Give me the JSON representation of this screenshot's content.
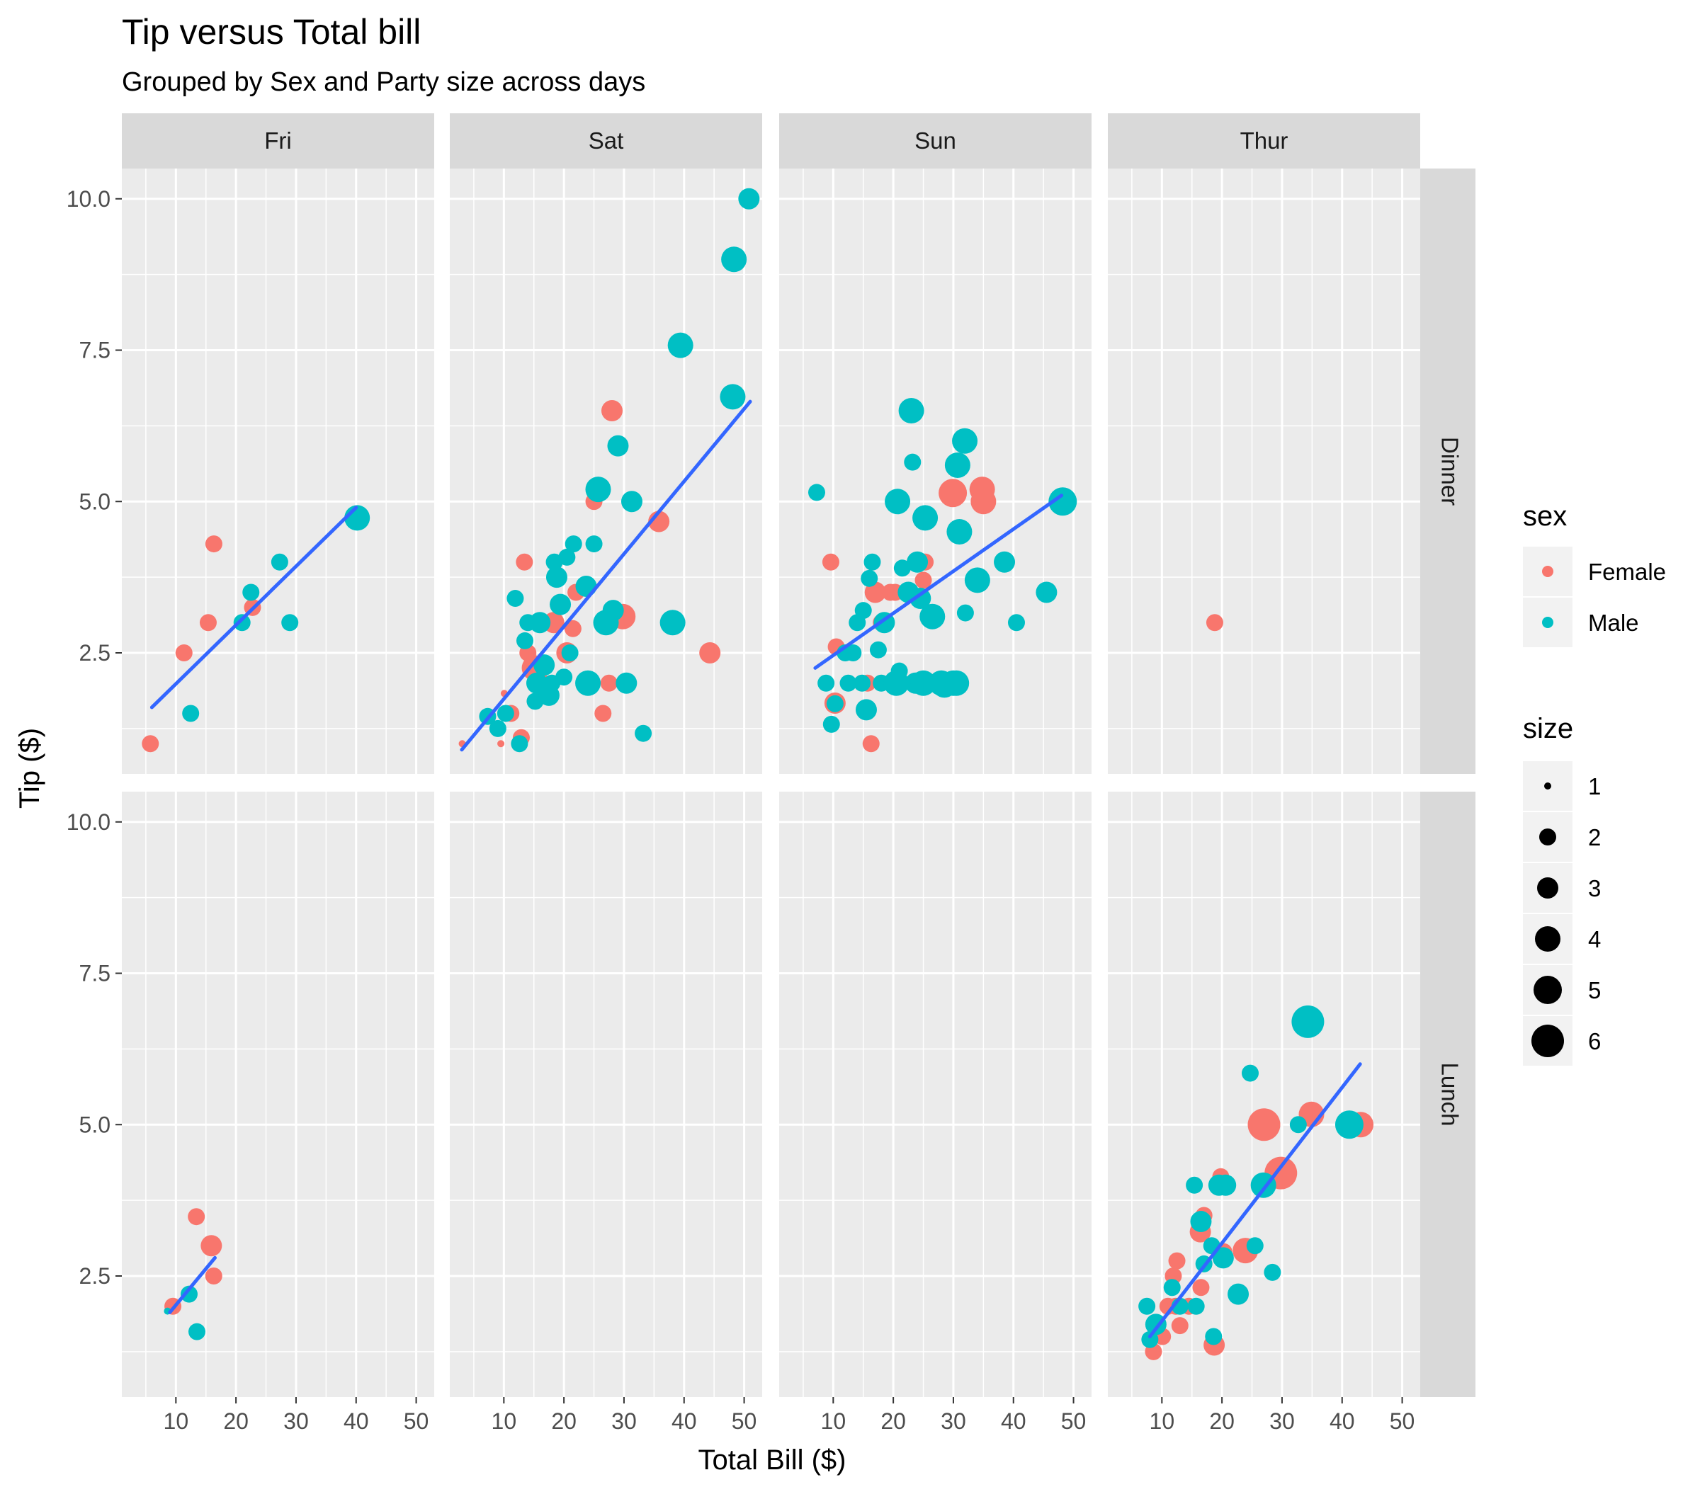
{
  "chart_data": {
    "type": "scatter",
    "title": "Tip versus Total bill",
    "subtitle": "Grouped by Sex and Party size across days",
    "xlabel": "Total Bill ($)",
    "ylabel": "Tip ($)",
    "xlim": [
      1,
      53
    ],
    "ylim": [
      0.5,
      10.5
    ],
    "x_ticks": [
      10,
      20,
      30,
      40,
      50
    ],
    "y_ticks": [
      2.5,
      5.0,
      7.5,
      10.0
    ],
    "y_tick_labels": [
      "2.5",
      "5.0",
      "7.5",
      "10.0"
    ],
    "columns": [
      "Fri",
      "Sat",
      "Sun",
      "Thur"
    ],
    "rows": [
      "Dinner",
      "Lunch"
    ],
    "grid": true,
    "colors": {
      "Female": "#F8766D",
      "Male": "#00BFC4",
      "trend": "#3366FF",
      "panel": "#EBEBEB",
      "strip": "#D9D9D9"
    },
    "legend": {
      "position": "right",
      "sex_title": "sex",
      "sex_entries": [
        "Female",
        "Male"
      ],
      "size_title": "size",
      "size_entries": [
        1,
        2,
        3,
        4,
        5,
        6
      ]
    },
    "panels": [
      {
        "day": "Fri",
        "time": "Dinner",
        "trend": [
          [
            6,
            1.6
          ],
          [
            40,
            4.9
          ]
        ],
        "points": [
          [
            5.75,
            1.0,
            "F",
            2
          ],
          [
            11.35,
            2.5,
            "F",
            2
          ],
          [
            15.38,
            3.0,
            "F",
            2
          ],
          [
            16.32,
            4.3,
            "F",
            2
          ],
          [
            22.75,
            3.25,
            "F",
            2
          ],
          [
            12.46,
            1.5,
            "M",
            2
          ],
          [
            21.01,
            3.0,
            "M",
            2
          ],
          [
            22.49,
            3.5,
            "M",
            2
          ],
          [
            27.28,
            4.0,
            "M",
            2
          ],
          [
            28.97,
            3.0,
            "M",
            2
          ],
          [
            40.17,
            4.73,
            "M",
            4
          ]
        ]
      },
      {
        "day": "Sat",
        "time": "Dinner",
        "trend": [
          [
            3,
            0.9
          ],
          [
            51,
            6.65
          ]
        ],
        "points": [
          [
            3.07,
            1.0,
            "F",
            1
          ],
          [
            9.5,
            1.0,
            "F",
            1
          ],
          [
            10.07,
            1.83,
            "F",
            1
          ],
          [
            11.17,
            1.5,
            "F",
            2
          ],
          [
            12.9,
            1.1,
            "F",
            2
          ],
          [
            13.42,
            4.0,
            "F",
            2
          ],
          [
            14.0,
            2.5,
            "F",
            2
          ],
          [
            15.1,
            2.25,
            "F",
            4
          ],
          [
            16.5,
            2.0,
            "F",
            2
          ],
          [
            17.7,
            3.0,
            "F",
            2
          ],
          [
            18.3,
            3.0,
            "F",
            3
          ],
          [
            20.5,
            2.5,
            "F",
            3
          ],
          [
            21.5,
            2.9,
            "F",
            2
          ],
          [
            22.0,
            3.5,
            "F",
            2
          ],
          [
            25.0,
            5.0,
            "F",
            2
          ],
          [
            26.5,
            1.5,
            "F",
            2
          ],
          [
            27.5,
            2.0,
            "F",
            2
          ],
          [
            28.0,
            6.5,
            "F",
            3
          ],
          [
            29.8,
            3.1,
            "F",
            4
          ],
          [
            35.8,
            4.67,
            "F",
            3
          ],
          [
            44.3,
            2.5,
            "F",
            3
          ],
          [
            7.3,
            1.45,
            "M",
            2
          ],
          [
            9.0,
            1.25,
            "M",
            2
          ],
          [
            10.3,
            1.5,
            "M",
            2
          ],
          [
            11.9,
            3.4,
            "M",
            2
          ],
          [
            12.6,
            1.0,
            "M",
            2
          ],
          [
            13.5,
            2.7,
            "M",
            2
          ],
          [
            14.0,
            3.0,
            "M",
            2
          ],
          [
            15.2,
            1.7,
            "M",
            2
          ],
          [
            15.5,
            2.0,
            "M",
            3
          ],
          [
            16.0,
            3.0,
            "M",
            3
          ],
          [
            16.7,
            2.3,
            "M",
            3
          ],
          [
            17.5,
            1.8,
            "M",
            3
          ],
          [
            18.0,
            2.0,
            "M",
            2
          ],
          [
            18.4,
            4.0,
            "M",
            2
          ],
          [
            18.8,
            3.75,
            "M",
            3
          ],
          [
            19.4,
            3.3,
            "M",
            3
          ],
          [
            20.0,
            2.1,
            "M",
            2
          ],
          [
            20.5,
            4.08,
            "M",
            2
          ],
          [
            21.0,
            2.5,
            "M",
            2
          ],
          [
            21.6,
            4.3,
            "M",
            2
          ],
          [
            23.7,
            3.6,
            "M",
            3
          ],
          [
            24.0,
            2.0,
            "M",
            4
          ],
          [
            25.0,
            4.3,
            "M",
            2
          ],
          [
            25.7,
            5.2,
            "M",
            4
          ],
          [
            27.0,
            3.0,
            "M",
            4
          ],
          [
            28.2,
            3.2,
            "M",
            3
          ],
          [
            29.0,
            5.92,
            "M",
            3
          ],
          [
            30.4,
            2.0,
            "M",
            3
          ],
          [
            31.3,
            5.0,
            "M",
            3
          ],
          [
            33.2,
            1.17,
            "M",
            2
          ],
          [
            38.1,
            3.0,
            "M",
            4
          ],
          [
            39.4,
            7.58,
            "M",
            4
          ],
          [
            48.1,
            6.73,
            "M",
            4
          ],
          [
            48.3,
            9.0,
            "M",
            4
          ],
          [
            50.8,
            10.0,
            "M",
            3
          ]
        ]
      },
      {
        "day": "Sun",
        "time": "Dinner",
        "trend": [
          [
            7,
            2.25
          ],
          [
            48,
            5.1
          ]
        ],
        "points": [
          [
            9.6,
            4.0,
            "F",
            2
          ],
          [
            10.3,
            1.67,
            "F",
            3
          ],
          [
            10.5,
            2.6,
            "F",
            2
          ],
          [
            15.7,
            2.0,
            "F",
            2
          ],
          [
            16.3,
            1.0,
            "F",
            2
          ],
          [
            17.0,
            3.5,
            "F",
            3
          ],
          [
            18.0,
            3.0,
            "F",
            2
          ],
          [
            19.5,
            3.5,
            "F",
            2
          ],
          [
            20.3,
            3.5,
            "F",
            2
          ],
          [
            25.0,
            3.7,
            "F",
            2
          ],
          [
            25.3,
            4.0,
            "F",
            2
          ],
          [
            29.9,
            5.14,
            "F",
            5
          ],
          [
            34.8,
            5.2,
            "F",
            4
          ],
          [
            35.0,
            5.0,
            "F",
            4
          ],
          [
            7.25,
            5.15,
            "M",
            2
          ],
          [
            8.8,
            2.0,
            "M",
            2
          ],
          [
            9.7,
            1.32,
            "M",
            2
          ],
          [
            10.3,
            1.66,
            "M",
            2
          ],
          [
            12.0,
            2.5,
            "M",
            2
          ],
          [
            12.5,
            2.0,
            "M",
            2
          ],
          [
            13.3,
            2.5,
            "M",
            2
          ],
          [
            14.0,
            3.0,
            "M",
            2
          ],
          [
            14.8,
            2.0,
            "M",
            2
          ],
          [
            15.0,
            3.2,
            "M",
            2
          ],
          [
            15.5,
            1.56,
            "M",
            3
          ],
          [
            16.0,
            3.73,
            "M",
            2
          ],
          [
            16.5,
            4.0,
            "M",
            2
          ],
          [
            17.5,
            2.55,
            "M",
            2
          ],
          [
            18.0,
            2.0,
            "M",
            2
          ],
          [
            18.5,
            3.0,
            "M",
            3
          ],
          [
            20.5,
            2.0,
            "M",
            4
          ],
          [
            20.7,
            5.0,
            "M",
            4
          ],
          [
            21.0,
            2.2,
            "M",
            2
          ],
          [
            21.5,
            3.9,
            "M",
            2
          ],
          [
            22.5,
            3.5,
            "M",
            3
          ],
          [
            23.0,
            6.5,
            "M",
            4
          ],
          [
            23.2,
            5.65,
            "M",
            2
          ],
          [
            23.7,
            2.0,
            "M",
            3
          ],
          [
            24.0,
            4.0,
            "M",
            3
          ],
          [
            24.5,
            3.4,
            "M",
            3
          ],
          [
            25.0,
            2.0,
            "M",
            4
          ],
          [
            25.3,
            4.73,
            "M",
            4
          ],
          [
            26.5,
            3.1,
            "M",
            4
          ],
          [
            28.0,
            2.0,
            "M",
            4
          ],
          [
            28.5,
            1.97,
            "M",
            4
          ],
          [
            30.0,
            2.0,
            "M",
            4
          ],
          [
            30.5,
            2.0,
            "M",
            4
          ],
          [
            30.7,
            5.6,
            "M",
            4
          ],
          [
            31.0,
            4.5,
            "M",
            4
          ],
          [
            31.9,
            6.0,
            "M",
            4
          ],
          [
            32.0,
            3.16,
            "M",
            2
          ],
          [
            34.0,
            3.7,
            "M",
            4
          ],
          [
            38.5,
            4.0,
            "M",
            3
          ],
          [
            40.5,
            3.0,
            "M",
            2
          ],
          [
            45.5,
            3.5,
            "M",
            3
          ],
          [
            48.2,
            5.0,
            "M",
            5
          ]
        ]
      },
      {
        "day": "Thur",
        "time": "Dinner",
        "trend": [],
        "points": [
          [
            18.8,
            3.0,
            "F",
            2
          ]
        ]
      },
      {
        "day": "Fri",
        "time": "Lunch",
        "trend": [
          [
            9,
            1.9
          ],
          [
            16.5,
            2.8
          ]
        ],
        "points": [
          [
            9.5,
            2.0,
            "F",
            2
          ],
          [
            13.4,
            3.48,
            "F",
            2
          ],
          [
            15.9,
            3.0,
            "F",
            3
          ],
          [
            16.3,
            2.5,
            "F",
            2
          ],
          [
            8.6,
            1.92,
            "M",
            1
          ],
          [
            12.2,
            2.2,
            "M",
            2
          ],
          [
            13.5,
            1.58,
            "M",
            2
          ]
        ]
      },
      {
        "day": "Sat",
        "time": "Lunch",
        "trend": [],
        "points": []
      },
      {
        "day": "Sun",
        "time": "Lunch",
        "trend": [],
        "points": []
      },
      {
        "day": "Thur",
        "time": "Lunch",
        "trend": [
          [
            8,
            1.5
          ],
          [
            43,
            6.0
          ]
        ],
        "points": [
          [
            8.6,
            1.25,
            "F",
            2
          ],
          [
            10.1,
            1.5,
            "F",
            2
          ],
          [
            11.0,
            2.0,
            "F",
            2
          ],
          [
            11.9,
            2.5,
            "F",
            2
          ],
          [
            12.3,
            2.0,
            "F",
            2
          ],
          [
            12.5,
            2.75,
            "F",
            2
          ],
          [
            13.0,
            1.68,
            "F",
            2
          ],
          [
            14.5,
            2.0,
            "F",
            2
          ],
          [
            16.4,
            3.23,
            "F",
            3
          ],
          [
            16.5,
            2.31,
            "F",
            2
          ],
          [
            17.0,
            3.5,
            "F",
            2
          ],
          [
            18.7,
            1.36,
            "F",
            3
          ],
          [
            19.8,
            4.14,
            "F",
            2
          ],
          [
            20.3,
            2.9,
            "F",
            2
          ],
          [
            23.9,
            2.92,
            "F",
            4
          ],
          [
            27.0,
            5.0,
            "F",
            6
          ],
          [
            29.8,
            4.2,
            "F",
            6
          ],
          [
            34.9,
            5.17,
            "F",
            4
          ],
          [
            43.1,
            5.0,
            "F",
            4
          ],
          [
            7.5,
            2.0,
            "M",
            2
          ],
          [
            8.0,
            1.45,
            "M",
            2
          ],
          [
            9.0,
            1.7,
            "M",
            3
          ],
          [
            11.7,
            2.31,
            "M",
            2
          ],
          [
            13.0,
            2.0,
            "M",
            2
          ],
          [
            15.4,
            4.0,
            "M",
            2
          ],
          [
            15.7,
            2.0,
            "M",
            2
          ],
          [
            16.5,
            3.4,
            "M",
            3
          ],
          [
            17.0,
            2.7,
            "M",
            2
          ],
          [
            18.3,
            3.0,
            "M",
            2
          ],
          [
            18.6,
            1.5,
            "M",
            2
          ],
          [
            19.5,
            4.0,
            "M",
            3
          ],
          [
            20.2,
            2.8,
            "M",
            3
          ],
          [
            20.6,
            4.0,
            "M",
            3
          ],
          [
            22.7,
            2.2,
            "M",
            3
          ],
          [
            24.7,
            5.85,
            "M",
            2
          ],
          [
            25.5,
            3.0,
            "M",
            2
          ],
          [
            26.9,
            4.0,
            "M",
            4
          ],
          [
            28.4,
            2.56,
            "M",
            2
          ],
          [
            32.7,
            5.0,
            "M",
            2
          ],
          [
            34.3,
            6.7,
            "M",
            6
          ],
          [
            41.2,
            5.0,
            "M",
            5
          ]
        ]
      }
    ]
  }
}
